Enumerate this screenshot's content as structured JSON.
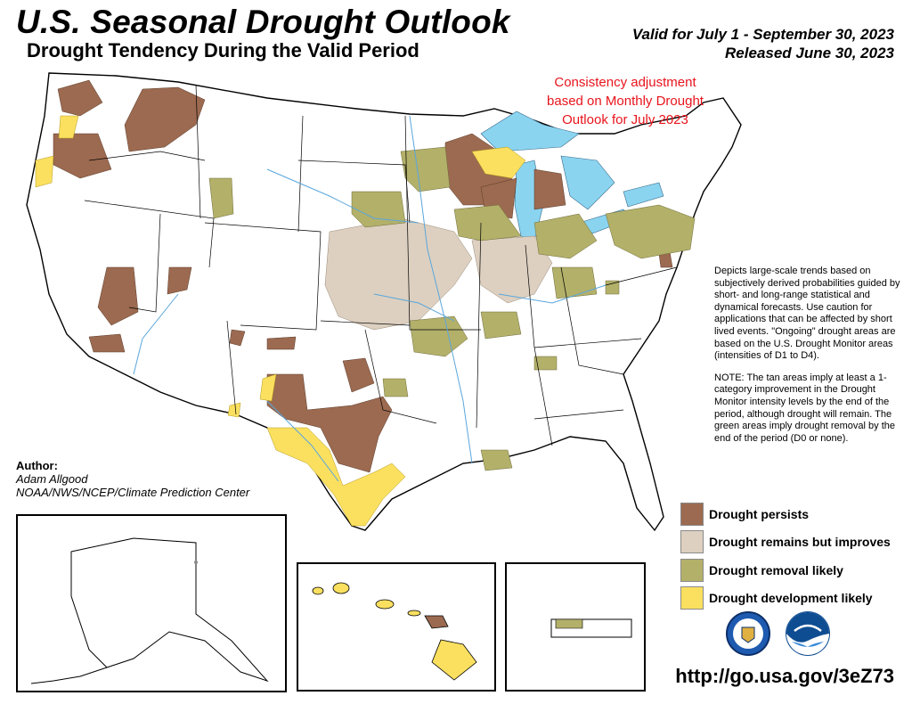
{
  "header": {
    "title": "U.S. Seasonal Drought Outlook",
    "subtitle": "Drought Tendency During the Valid Period",
    "valid": "Valid for July 1 - September 30, 2023",
    "released": "Released June 30, 2023"
  },
  "consistency_note": "Consistency adjustment based on Monthly Drought Outlook for July 2023",
  "notes": {
    "paragraph1": "Depicts large-scale trends based on subjectively derived probabilities guided by short- and long-range statistical and dynamical forecasts. Use caution for applications that can be affected by short lived events. \"Ongoing\" drought areas are based on the U.S. Drought Monitor areas (intensities of D1 to D4).",
    "paragraph2": "NOTE: The tan areas imply at least a 1-category improvement in the Drought Monitor intensity levels by the end of the period, although drought will remain. The green areas imply drought removal by the end of the period (D0 or none)."
  },
  "author": {
    "label": "Author:",
    "name": "Adam Allgood",
    "org": "NOAA/NWS/NCEP/Climate Prediction Center"
  },
  "legend": [
    {
      "label": "Drought persists",
      "color": "#9c6a50"
    },
    {
      "label": "Drought remains but improves",
      "color": "#ddd0c0"
    },
    {
      "label": "Drought removal likely",
      "color": "#b3b06a"
    },
    {
      "label": "Drought development likely",
      "color": "#fbe060"
    }
  ],
  "colors": {
    "persists": "#9c6a50",
    "improves": "#ddd0c0",
    "removal": "#b3b06a",
    "development": "#fbe060",
    "water": "#8ad4f0",
    "river": "#5aa6dc",
    "consistency_text": "#e8141c"
  },
  "logos": [
    "noaa-doc-seal-icon",
    "noaa-logo-icon"
  ],
  "url": "http://go.usa.gov/3eZ73"
}
